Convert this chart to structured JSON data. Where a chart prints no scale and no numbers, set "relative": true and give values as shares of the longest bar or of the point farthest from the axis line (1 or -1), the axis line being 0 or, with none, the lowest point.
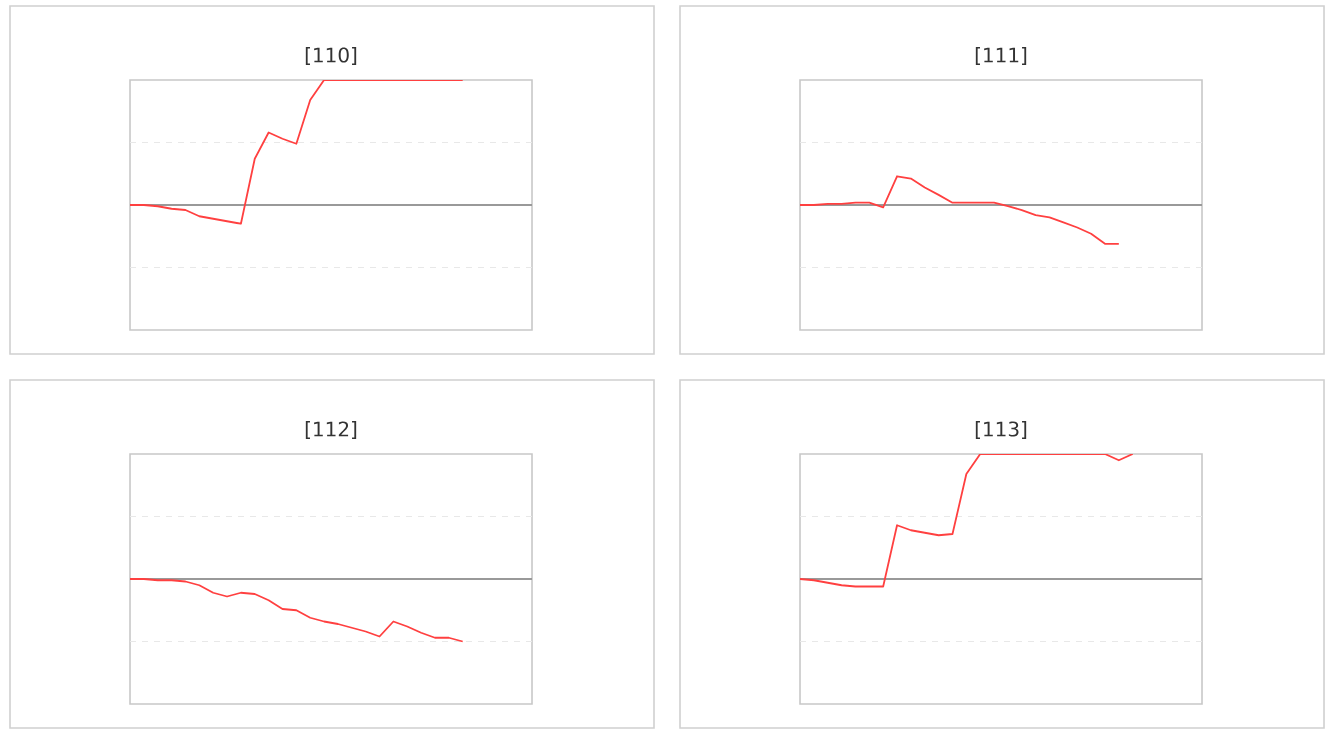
{
  "chart_data": [
    {
      "type": "line",
      "title": "[110]",
      "relative": true,
      "color": "#ff4040",
      "ref_lines": [
        {
          "axis": "y",
          "value": 0,
          "color": "#999999"
        },
        {
          "axis": "y",
          "value": 0.5,
          "color": "#e8e8e8",
          "line_style": "dashed"
        },
        {
          "axis": "y",
          "value": -0.5,
          "color": "#e8e8e8",
          "line_style": "dashed"
        }
      ],
      "categories": [
        null,
        null,
        null,
        null,
        null,
        null,
        null,
        null,
        null,
        null,
        null,
        null,
        null,
        null,
        null,
        null,
        null,
        null,
        null,
        null,
        null,
        null,
        null,
        null,
        null,
        null,
        null,
        null,
        null,
        null
      ],
      "values": [
        0,
        0,
        -0.01,
        -0.03,
        -0.04,
        -0.09,
        -0.11,
        -0.13,
        -0.15,
        0.37,
        0.58,
        0.53,
        0.49,
        0.84,
        1,
        1,
        1,
        1,
        1,
        1,
        1,
        1,
        1,
        1,
        1,
        null,
        null,
        null,
        null,
        null
      ]
    },
    {
      "type": "line",
      "title": "[111]",
      "relative": true,
      "color": "#ff4040",
      "ref_lines": [
        {
          "axis": "y",
          "value": 0,
          "color": "#999999"
        },
        {
          "axis": "y",
          "value": 1.61,
          "color": "#e8e8e8",
          "line_style": "dashed"
        },
        {
          "axis": "y",
          "value": -1.61,
          "color": "#e8e8e8",
          "line_style": "dashed"
        }
      ],
      "categories": [
        null,
        null,
        null,
        null,
        null,
        null,
        null,
        null,
        null,
        null,
        null,
        null,
        null,
        null,
        null,
        null,
        null,
        null,
        null,
        null,
        null,
        null,
        null,
        null,
        null,
        null,
        null,
        null,
        null,
        null
      ],
      "values": [
        0,
        0,
        0.03,
        0.03,
        0.06,
        0.06,
        -0.06,
        0.74,
        0.68,
        0.45,
        0.26,
        0.06,
        0.06,
        0.06,
        0.06,
        -0.03,
        -0.13,
        -0.26,
        -0.32,
        -0.45,
        -0.58,
        -0.74,
        -1,
        -1,
        null,
        null,
        null,
        null,
        null,
        null
      ]
    },
    {
      "type": "line",
      "title": "[112]",
      "relative": true,
      "color": "#ff4040",
      "ref_lines": [
        {
          "axis": "y",
          "value": 0,
          "color": "#999999"
        },
        {
          "axis": "y",
          "value": 1,
          "color": "#e8e8e8",
          "line_style": "dashed"
        },
        {
          "axis": "y",
          "value": -1,
          "color": "#e8e8e8",
          "line_style": "dashed"
        }
      ],
      "categories": [
        null,
        null,
        null,
        null,
        null,
        null,
        null,
        null,
        null,
        null,
        null,
        null,
        null,
        null,
        null,
        null,
        null,
        null,
        null,
        null,
        null,
        null,
        null,
        null,
        null,
        null,
        null,
        null,
        null,
        null
      ],
      "values": [
        0,
        0,
        -0.02,
        -0.02,
        -0.04,
        -0.1,
        -0.22,
        -0.28,
        -0.22,
        -0.24,
        -0.34,
        -0.48,
        -0.5,
        -0.62,
        -0.68,
        -0.72,
        -0.78,
        -0.84,
        -0.92,
        -0.68,
        -0.76,
        -0.86,
        -0.94,
        -0.94,
        -1,
        null,
        null,
        null,
        null,
        null
      ]
    },
    {
      "type": "line",
      "title": "[113]",
      "relative": true,
      "color": "#ff4040",
      "ref_lines": [
        {
          "axis": "y",
          "value": 0,
          "color": "#999999"
        },
        {
          "axis": "y",
          "value": 0.5,
          "color": "#e8e8e8",
          "line_style": "dashed"
        },
        {
          "axis": "y",
          "value": -0.5,
          "color": "#e8e8e8",
          "line_style": "dashed"
        }
      ],
      "categories": [
        null,
        null,
        null,
        null,
        null,
        null,
        null,
        null,
        null,
        null,
        null,
        null,
        null,
        null,
        null,
        null,
        null,
        null,
        null,
        null,
        null,
        null,
        null,
        null,
        null,
        null,
        null,
        null,
        null,
        null
      ],
      "values": [
        0,
        -0.01,
        -0.03,
        -0.05,
        -0.06,
        -0.06,
        -0.06,
        0.43,
        0.39,
        0.37,
        0.35,
        0.36,
        0.84,
        1,
        1,
        1,
        1,
        1,
        1,
        1,
        1,
        1,
        1,
        0.95,
        1,
        null,
        null,
        null,
        null,
        null
      ]
    }
  ]
}
